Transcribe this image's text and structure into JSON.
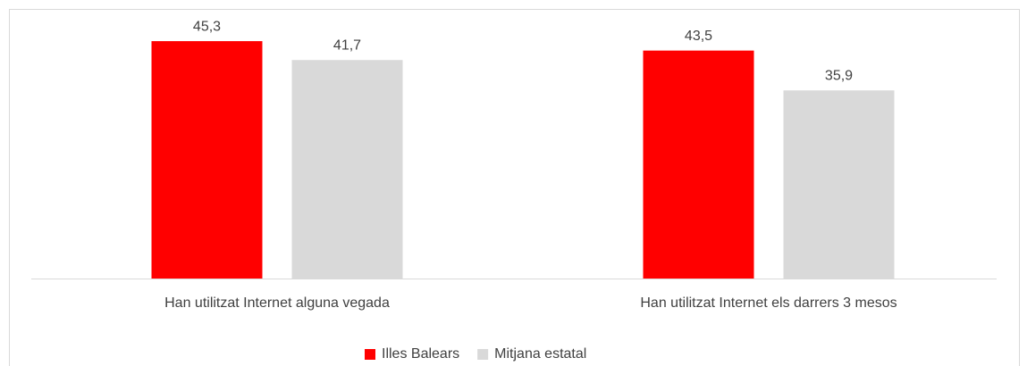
{
  "chart_data": {
    "type": "bar",
    "categories": [
      "Han utilitzat Internet alguna vegada",
      "Han utilitzat Internet els darrers 3 mesos"
    ],
    "series": [
      {
        "name": "Illes Balears",
        "color": "#ff0000",
        "values": [
          45.3,
          43.5
        ],
        "value_labels": [
          "45,3",
          "43,5"
        ]
      },
      {
        "name": "Mitjana estatal",
        "color": "#d9d9d9",
        "values": [
          41.7,
          35.9
        ],
        "value_labels": [
          "41,7",
          "35,9"
        ]
      }
    ],
    "ylim": [
      0,
      50
    ],
    "legend": "bottom"
  }
}
